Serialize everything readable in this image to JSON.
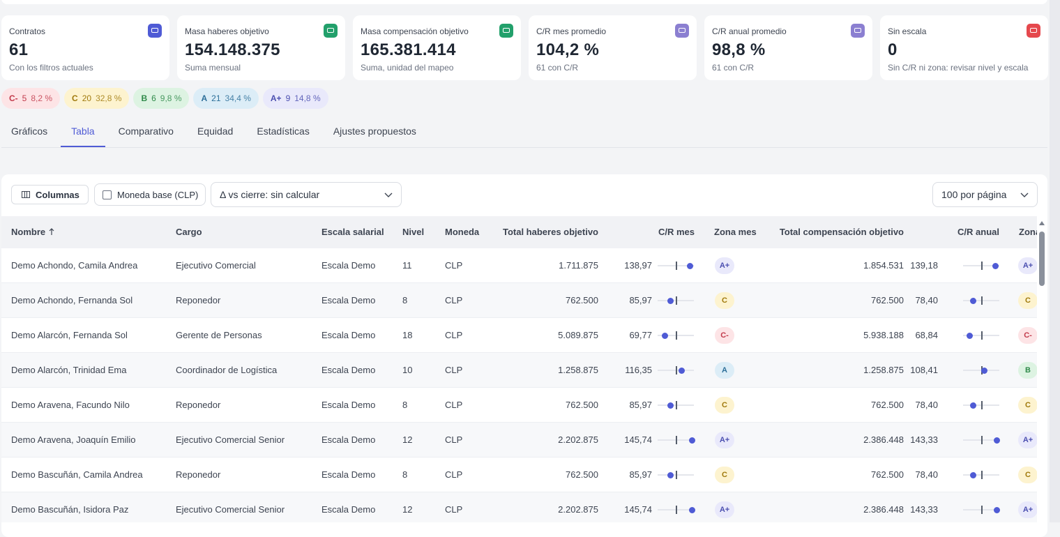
{
  "kpis": [
    {
      "label": "Contratos",
      "value": "61",
      "sub": "Con los filtros actuales",
      "color": "#4f5bd5"
    },
    {
      "label": "Masa haberes objetivo",
      "value": "154.148.375",
      "sub": "Suma mensual",
      "color": "#22a06b"
    },
    {
      "label": "Masa compensación objetivo",
      "value": "165.381.414",
      "sub": "Suma, unidad del mapeo",
      "color": "#22a06b"
    },
    {
      "label": "C/R mes promedio",
      "value": "104,2 %",
      "sub": "61 con C/R",
      "color": "#8b7fd1"
    },
    {
      "label": "C/R anual promedio",
      "value": "98,8 %",
      "sub": "61 con C/R",
      "color": "#8b7fd1"
    },
    {
      "label": "Sin escala",
      "value": "0",
      "sub": "Sin C/R ni zona: revisar nivel y escala",
      "color": "#e5484d"
    }
  ],
  "zones": [
    {
      "zone": "C-",
      "count": "5",
      "pct": "8,2 %",
      "bg": "#fde4e6",
      "fg": "#c23a4b"
    },
    {
      "zone": "C",
      "count": "20",
      "pct": "32,8 %",
      "bg": "#fdf3cf",
      "fg": "#a07a0c"
    },
    {
      "zone": "B",
      "count": "6",
      "pct": "9,8 %",
      "bg": "#ddf3e2",
      "fg": "#2f8a4a"
    },
    {
      "zone": "A",
      "count": "21",
      "pct": "34,4 %",
      "bg": "#dcedf7",
      "fg": "#2d6f99"
    },
    {
      "zone": "A+",
      "count": "9",
      "pct": "14,8 %",
      "bg": "#e9e9fb",
      "fg": "#4b4fb0"
    }
  ],
  "tabs": [
    "Gráficos",
    "Tabla",
    "Comparativo",
    "Equidad",
    "Estadísticas",
    "Ajustes propuestos"
  ],
  "active_tab": 1,
  "toolbar": {
    "columns_button": "Columnas",
    "base_currency": "Moneda base (CLP)",
    "delta_select": "Δ vs cierre: sin calcular",
    "page_size": "100 por página"
  },
  "table": {
    "columns": {
      "nombre": "Nombre",
      "cargo": "Cargo",
      "escala": "Escala salarial",
      "nivel": "Nivel",
      "moneda": "Moneda",
      "total_haberes": "Total haberes objetivo",
      "cr_mes": "C/R mes",
      "zona_mes": "Zona mes",
      "total_comp": "Total compensación objetivo",
      "cr_anual": "C/R anual",
      "zona_anual": "Zona"
    },
    "rows": [
      {
        "nombre": "Demo Achondo, Camila Andrea",
        "cargo": "Ejecutivo Comercial",
        "escala": "Escala Demo",
        "nivel": "11",
        "moneda": "CLP",
        "total_haberes": "1.711.875",
        "cr_mes": "138,97",
        "zona_mes": "A+",
        "total_comp": "1.854.531",
        "cr_anual": "139,18",
        "zona_anual": "A+"
      },
      {
        "nombre": "Demo Achondo, Fernanda Sol",
        "cargo": "Reponedor",
        "escala": "Escala Demo",
        "nivel": "8",
        "moneda": "CLP",
        "total_haberes": "762.500",
        "cr_mes": "85,97",
        "zona_mes": "C",
        "total_comp": "762.500",
        "cr_anual": "78,40",
        "zona_anual": "C"
      },
      {
        "nombre": "Demo Alarcón, Fernanda Sol",
        "cargo": "Gerente de Personas",
        "escala": "Escala Demo",
        "nivel": "18",
        "moneda": "CLP",
        "total_haberes": "5.089.875",
        "cr_mes": "69,77",
        "zona_mes": "C-",
        "total_comp": "5.938.188",
        "cr_anual": "68,84",
        "zona_anual": "C-"
      },
      {
        "nombre": "Demo Alarcón, Trinidad Ema",
        "cargo": "Coordinador de Logística",
        "escala": "Escala Demo",
        "nivel": "10",
        "moneda": "CLP",
        "total_haberes": "1.258.875",
        "cr_mes": "116,35",
        "zona_mes": "A",
        "total_comp": "1.258.875",
        "cr_anual": "108,41",
        "zona_anual": "B"
      },
      {
        "nombre": "Demo Aravena, Facundo Nilo",
        "cargo": "Reponedor",
        "escala": "Escala Demo",
        "nivel": "8",
        "moneda": "CLP",
        "total_haberes": "762.500",
        "cr_mes": "85,97",
        "zona_mes": "C",
        "total_comp": "762.500",
        "cr_anual": "78,40",
        "zona_anual": "C"
      },
      {
        "nombre": "Demo Aravena, Joaquín Emilio",
        "cargo": "Ejecutivo Comercial Senior",
        "escala": "Escala Demo",
        "nivel": "12",
        "moneda": "CLP",
        "total_haberes": "2.202.875",
        "cr_mes": "145,74",
        "zona_mes": "A+",
        "total_comp": "2.386.448",
        "cr_anual": "143,33",
        "zona_anual": "A+"
      },
      {
        "nombre": "Demo Bascuñán, Camila Andrea",
        "cargo": "Reponedor",
        "escala": "Escala Demo",
        "nivel": "8",
        "moneda": "CLP",
        "total_haberes": "762.500",
        "cr_mes": "85,97",
        "zona_mes": "C",
        "total_comp": "762.500",
        "cr_anual": "78,40",
        "zona_anual": "C"
      },
      {
        "nombre": "Demo Bascuñán, Isidora Paz",
        "cargo": "Ejecutivo Comercial Senior",
        "escala": "Escala Demo",
        "nivel": "12",
        "moneda": "CLP",
        "total_haberes": "2.202.875",
        "cr_mes": "145,74",
        "zona_mes": "A+",
        "total_comp": "2.386.448",
        "cr_anual": "143,33",
        "zona_anual": "A+"
      }
    ]
  }
}
